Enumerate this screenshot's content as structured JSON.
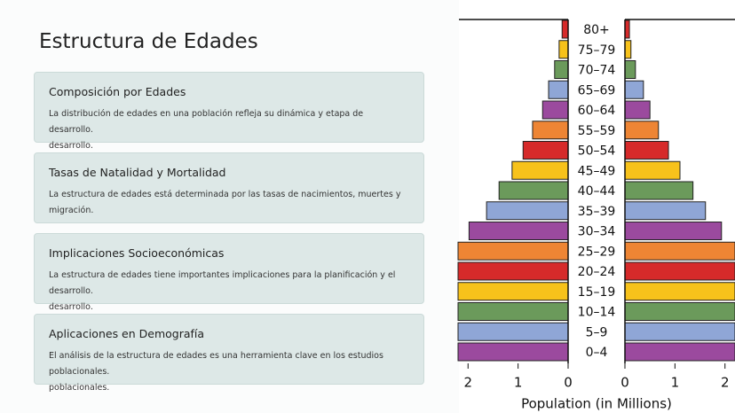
{
  "header": {
    "title": "Estructura de Edades"
  },
  "cards": [
    {
      "title": "Composición por Edades",
      "body": [
        "La distribución de edades en una población refleja su dinámica y etapa de desarrollo.",
        "desarrollo."
      ]
    },
    {
      "title": "Tasas de Natalidad y Mortalidad",
      "body": [
        "La estructura de edades está determinada por las tasas de nacimientos, muertes y migración."
      ]
    },
    {
      "title": "Implicaciones Socioeconómicas",
      "body": [
        "La estructura de edades tiene importantes implicaciones para la planificación y el desarrollo.",
        "desarrollo."
      ]
    },
    {
      "title": "Aplicaciones en Demografía",
      "body": [
        "El análisis de la estructura de edades es una herramienta clave en los estudios poblacionales.",
        "poblacionales."
      ]
    }
  ],
  "chart_data": {
    "type": "pyramid",
    "categories": [
      "0–4",
      "5–9",
      "10–14",
      "15–19",
      "20–24",
      "25–29",
      "30–34",
      "35–39",
      "40–44",
      "45–49",
      "50–54",
      "55–59",
      "60–64",
      "65–69",
      "70–74",
      "75–79",
      "80+"
    ],
    "series": [
      {
        "values": [
          2.2,
          2.2,
          2.2,
          2.2,
          2.2,
          2.2,
          1.98,
          1.63,
          1.38,
          1.12,
          0.9,
          0.71,
          0.51,
          0.39,
          0.27,
          0.18,
          0.12
        ]
      },
      {
        "values": [
          2.2,
          2.2,
          2.2,
          2.2,
          2.2,
          2.2,
          1.93,
          1.61,
          1.36,
          1.1,
          0.87,
          0.67,
          0.5,
          0.37,
          0.21,
          0.12,
          0.09
        ]
      }
    ],
    "colors": [
      "#9b4a9e",
      "#8fa6d6",
      "#6b9a5b",
      "#f7c21b",
      "#d62a2a",
      "#ee8534",
      "#9b4a9e",
      "#8fa6d6",
      "#6b9a5b",
      "#f7c21b",
      "#d62a2a",
      "#ee8534",
      "#9b4a9e",
      "#8fa6d6",
      "#6b9a5b",
      "#f7c21b",
      "#d62a2a"
    ],
    "xlim": [
      0,
      2.2
    ],
    "xticks": [
      0,
      1,
      2
    ],
    "xlabel": "Population (in Millions)"
  }
}
